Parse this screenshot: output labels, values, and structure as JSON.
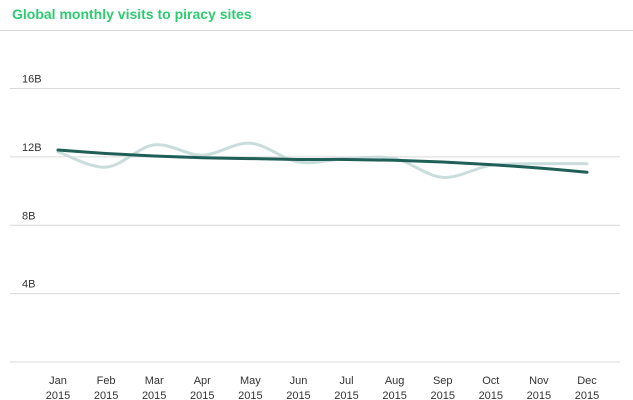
{
  "chart_data": {
    "type": "line",
    "title": "Global monthly visits to piracy sites",
    "ytick_labels": [
      "16B",
      "12B",
      "8B",
      "4B"
    ],
    "ytick_values": [
      16,
      12,
      8,
      4
    ],
    "ylim": [
      0,
      17.2
    ],
    "yunit": "billions",
    "categories": [
      [
        "Jan",
        "2015"
      ],
      [
        "Feb",
        "2015"
      ],
      [
        "Mar",
        "2015"
      ],
      [
        "Apr",
        "2015"
      ],
      [
        "May",
        "2015"
      ],
      [
        "Jun",
        "2015"
      ],
      [
        "Jul",
        "2015"
      ],
      [
        "Aug",
        "2015"
      ],
      [
        "Sep",
        "2015"
      ],
      [
        "Oct",
        "2015"
      ],
      [
        "Nov",
        "2015"
      ],
      [
        "Dec",
        "2015"
      ]
    ],
    "series": [
      {
        "values": [
          12.3,
          11.4,
          12.7,
          12.1,
          12.8,
          11.7,
          11.9,
          11.9,
          10.8,
          11.5,
          11.6,
          11.6
        ],
        "color": "#c9dedc"
      },
      {
        "values": [
          12.4,
          12.2,
          12.05,
          11.95,
          11.9,
          11.85,
          11.85,
          11.8,
          11.7,
          11.55,
          11.35,
          11.1
        ],
        "color": "#1f5f57"
      }
    ],
    "grid": true
  }
}
